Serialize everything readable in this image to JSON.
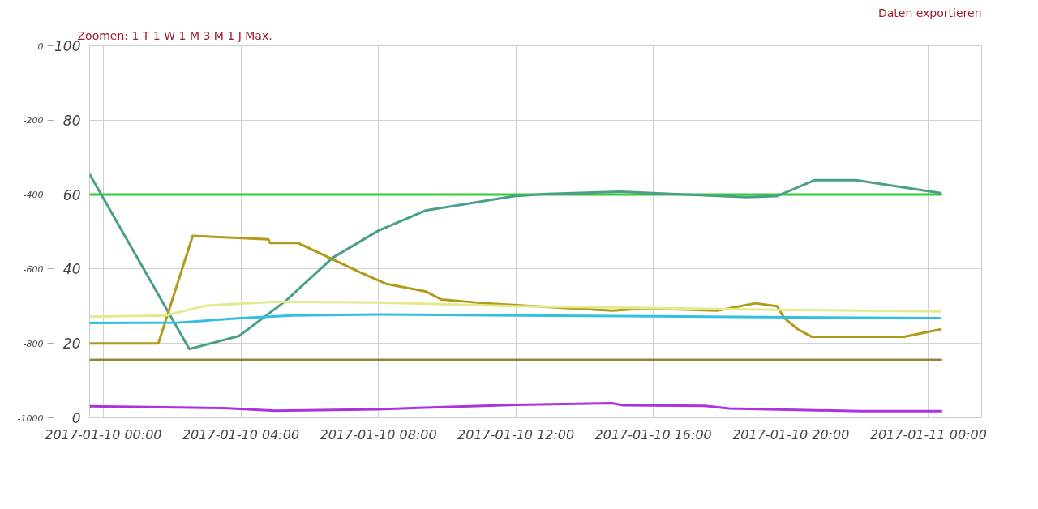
{
  "chart_data": {
    "type": "line",
    "annotations": [
      "Zoomen: 1 T 1 W 1 M 3 M 1 J Max.",
      "Daten exportieren"
    ],
    "xlim": [
      "2017-01-09T23:36",
      "2017-01-11T01:33"
    ],
    "xticks": [
      {
        "value": "2017-01-10T00:00",
        "label": "2017-01-10 00:00"
      },
      {
        "value": "2017-01-10T04:00",
        "label": "2017-01-10 04:00"
      },
      {
        "value": "2017-01-10T08:00",
        "label": "2017-01-10 08:00"
      },
      {
        "value": "2017-01-10T12:00",
        "label": "2017-01-10 12:00"
      },
      {
        "value": "2017-01-10T16:00",
        "label": "2017-01-10 16:00"
      },
      {
        "value": "2017-01-10T20:00",
        "label": "2017-01-10 20:00"
      },
      {
        "value": "2017-01-11T00:00",
        "label": "2017-01-11 00:00"
      }
    ],
    "ylim": [
      0,
      100
    ],
    "yticks": [
      0,
      20,
      40,
      60,
      80,
      100
    ],
    "y2lim": [
      -1000,
      0
    ],
    "y2ticks": [
      -1000,
      -800,
      -600,
      -400,
      -200,
      0
    ],
    "grid": true,
    "marker": "none",
    "line_style": "solid",
    "series": [
      {
        "color": "#33cc33",
        "x": [
          "2017-01-09T23:36",
          "2017-01-11T00:24"
        ],
        "values": [
          60,
          60
        ]
      },
      {
        "color": "#4a9e8a",
        "x": [
          "2017-01-09T23:36",
          "2017-01-10T02:30",
          "2017-01-10T03:57",
          "2017-01-10T05:18",
          "2017-01-10T06:40",
          "2017-01-10T08:00",
          "2017-01-10T09:22",
          "2017-01-10T11:57",
          "2017-01-10T12:54",
          "2017-01-10T15:03",
          "2017-01-10T18:42",
          "2017-01-10T19:36",
          "2017-01-10T20:42",
          "2017-01-10T21:54",
          "2017-01-11T00:22"
        ],
        "values": [
          65.5,
          18.5,
          22,
          31.4,
          43,
          50.3,
          55.7,
          59.6,
          60.2,
          60.8,
          59.3,
          59.6,
          63.9,
          63.9,
          60.4
        ]
      },
      {
        "color": "#b09a1a",
        "x": [
          "2017-01-09T23:36",
          "2017-01-10T01:36",
          "2017-01-10T02:36",
          "2017-01-10T04:48",
          "2017-01-10T04:51",
          "2017-01-10T05:40",
          "2017-01-10T07:27",
          "2017-01-10T08:14",
          "2017-01-10T09:22",
          "2017-01-10T09:50",
          "2017-01-10T11:06",
          "2017-01-10T14:48",
          "2017-01-10T15:48",
          "2017-01-10T17:51",
          "2017-01-10T18:58",
          "2017-01-10T19:36",
          "2017-01-10T19:48",
          "2017-01-10T20:12",
          "2017-01-10T20:36",
          "2017-01-10T23:18",
          "2017-01-11T00:22"
        ],
        "values": [
          20,
          20,
          48.9,
          48,
          47,
          47,
          39.2,
          36,
          34,
          31.8,
          30.8,
          28.8,
          29.4,
          28.8,
          30.8,
          30,
          26.9,
          23.8,
          21.8,
          21.8,
          23.8
        ]
      },
      {
        "color": "#e4ea8c",
        "x": [
          "2017-01-09T23:36",
          "2017-01-10T01:48",
          "2017-01-10T03:00",
          "2017-01-10T05:00",
          "2017-01-10T08:00",
          "2017-01-10T12:00",
          "2017-01-10T16:00",
          "2017-01-10T20:00",
          "2017-01-11T00:22"
        ],
        "values": [
          27.2,
          27.5,
          30.2,
          31.2,
          31,
          30,
          29.5,
          29,
          28.6
        ]
      },
      {
        "color": "#33c0e0",
        "x": [
          "2017-01-09T23:36",
          "2017-01-10T02:12",
          "2017-01-10T04:00",
          "2017-01-10T05:30",
          "2017-01-10T08:00",
          "2017-01-10T12:00",
          "2017-01-10T16:00",
          "2017-01-10T20:00",
          "2017-01-11T00:22"
        ],
        "values": [
          25.5,
          25.6,
          26.8,
          27.5,
          27.8,
          27.5,
          27.3,
          27,
          26.8
        ]
      },
      {
        "color": "#8a8a40",
        "x": [
          "2017-01-09T23:36",
          "2017-01-11T00:24"
        ],
        "values": [
          15.6,
          15.6
        ]
      },
      {
        "color": "#aa33dd",
        "x": [
          "2017-01-09T23:36",
          "2017-01-10T03:30",
          "2017-01-10T05:00",
          "2017-01-10T08:00",
          "2017-01-10T12:00",
          "2017-01-10T14:48",
          "2017-01-10T15:06",
          "2017-01-10T17:30",
          "2017-01-10T18:12",
          "2017-01-10T22:00",
          "2017-01-11T00:24"
        ],
        "values": [
          3.1,
          2.6,
          1.9,
          2.3,
          3.5,
          3.9,
          3.4,
          3.2,
          2.5,
          1.8,
          1.8
        ]
      }
    ]
  }
}
